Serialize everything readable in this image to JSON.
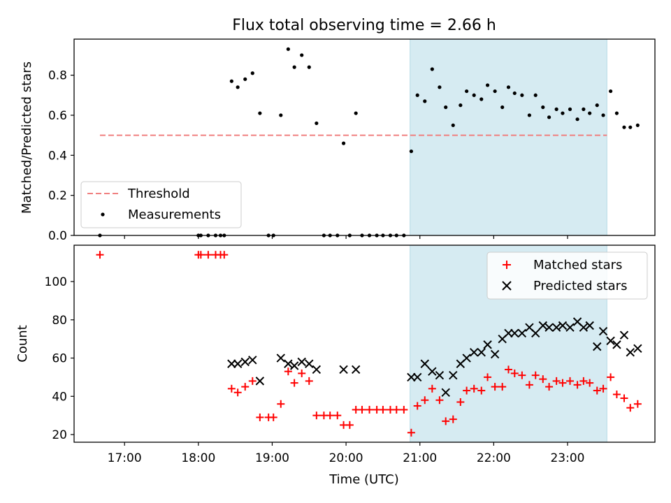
{
  "chart_data": {
    "title": "Flux total observing time = 2.66 h",
    "time_ticks": [
      "17:00",
      "18:00",
      "19:00",
      "20:00",
      "21:00",
      "22:00",
      "23:00"
    ],
    "xlabel": "Time (UTC)",
    "shaded_interval": {
      "start": "20:52",
      "end": "23:32"
    },
    "panels": [
      {
        "type": "scatter",
        "ylabel": "Matched/Predicted stars",
        "ylim": [
          0,
          0.98
        ],
        "yticks": [
          "0.0",
          "0.2",
          "0.4",
          "0.6",
          "0.8"
        ],
        "legend_position": "lower-left",
        "threshold": {
          "label": "Threshold",
          "value": 0.5,
          "color": "#f08080",
          "from": "16:40",
          "to": "23:32"
        },
        "measurements": {
          "label": "Measurements",
          "color": "#000000",
          "points": [
            [
              "16:40",
              0.0
            ],
            [
              "18:00",
              0.0
            ],
            [
              "18:02",
              0.0
            ],
            [
              "18:08",
              0.0
            ],
            [
              "18:14",
              0.0
            ],
            [
              "18:18",
              0.0
            ],
            [
              "18:21",
              0.0
            ],
            [
              "18:27",
              0.77
            ],
            [
              "18:32",
              0.74
            ],
            [
              "18:38",
              0.78
            ],
            [
              "18:44",
              0.81
            ],
            [
              "18:50",
              0.61
            ],
            [
              "18:57",
              0.0
            ],
            [
              "19:01",
              0.0
            ],
            [
              "19:07",
              0.6
            ],
            [
              "19:13",
              0.93
            ],
            [
              "19:18",
              0.84
            ],
            [
              "19:24",
              0.9
            ],
            [
              "19:30",
              0.84
            ],
            [
              "19:36",
              0.56
            ],
            [
              "19:42",
              0.0
            ],
            [
              "19:47",
              0.0
            ],
            [
              "19:53",
              0.0
            ],
            [
              "19:58",
              0.46
            ],
            [
              "20:03",
              0.0
            ],
            [
              "20:08",
              0.61
            ],
            [
              "20:13",
              0.0
            ],
            [
              "20:19",
              0.0
            ],
            [
              "20:25",
              0.0
            ],
            [
              "20:30",
              0.0
            ],
            [
              "20:36",
              0.0
            ],
            [
              "20:41",
              0.0
            ],
            [
              "20:47",
              0.0
            ],
            [
              "20:53",
              0.42
            ],
            [
              "20:58",
              0.7
            ],
            [
              "21:04",
              0.67
            ],
            [
              "21:10",
              0.83
            ],
            [
              "21:16",
              0.74
            ],
            [
              "21:21",
              0.64
            ],
            [
              "21:27",
              0.55
            ],
            [
              "21:33",
              0.65
            ],
            [
              "21:38",
              0.72
            ],
            [
              "21:44",
              0.7
            ],
            [
              "21:50",
              0.68
            ],
            [
              "21:55",
              0.75
            ],
            [
              "22:01",
              0.72
            ],
            [
              "22:07",
              0.64
            ],
            [
              "22:12",
              0.74
            ],
            [
              "22:17",
              0.71
            ],
            [
              "22:23",
              0.7
            ],
            [
              "22:29",
              0.6
            ],
            [
              "22:34",
              0.7
            ],
            [
              "22:40",
              0.64
            ],
            [
              "22:45",
              0.59
            ],
            [
              "22:51",
              0.63
            ],
            [
              "22:56",
              0.61
            ],
            [
              "23:02",
              0.63
            ],
            [
              "23:08",
              0.58
            ],
            [
              "23:13",
              0.63
            ],
            [
              "23:18",
              0.61
            ],
            [
              "23:24",
              0.65
            ],
            [
              "23:29",
              0.6
            ],
            [
              "23:35",
              0.72
            ],
            [
              "23:40",
              0.61
            ],
            [
              "23:46",
              0.54
            ],
            [
              "23:51",
              0.54
            ],
            [
              "23:57",
              0.55
            ]
          ]
        }
      },
      {
        "type": "scatter",
        "ylabel": "Count",
        "ylim": [
          16,
          119
        ],
        "yticks": [
          "20",
          "40",
          "60",
          "80",
          "100"
        ],
        "legend_position": "upper-right",
        "series": [
          {
            "name": "Matched stars",
            "marker": "+",
            "color": "#ff0000",
            "points": [
              [
                "16:40",
                114
              ],
              [
                "18:00",
                114
              ],
              [
                "18:02",
                114
              ],
              [
                "18:08",
                114
              ],
              [
                "18:14",
                114
              ],
              [
                "18:18",
                114
              ],
              [
                "18:21",
                114
              ],
              [
                "18:27",
                44
              ],
              [
                "18:32",
                42
              ],
              [
                "18:38",
                45
              ],
              [
                "18:44",
                48
              ],
              [
                "18:50",
                29
              ],
              [
                "18:57",
                29
              ],
              [
                "19:01",
                29
              ],
              [
                "19:07",
                36
              ],
              [
                "19:13",
                53
              ],
              [
                "19:18",
                47
              ],
              [
                "19:24",
                52
              ],
              [
                "19:30",
                48
              ],
              [
                "19:36",
                30
              ],
              [
                "19:42",
                30
              ],
              [
                "19:47",
                30
              ],
              [
                "19:53",
                30
              ],
              [
                "19:58",
                25
              ],
              [
                "20:03",
                25
              ],
              [
                "20:08",
                33
              ],
              [
                "20:13",
                33
              ],
              [
                "20:19",
                33
              ],
              [
                "20:25",
                33
              ],
              [
                "20:30",
                33
              ],
              [
                "20:36",
                33
              ],
              [
                "20:41",
                33
              ],
              [
                "20:47",
                33
              ],
              [
                "20:53",
                21
              ],
              [
                "20:58",
                35
              ],
              [
                "21:04",
                38
              ],
              [
                "21:10",
                44
              ],
              [
                "21:16",
                38
              ],
              [
                "21:21",
                27
              ],
              [
                "21:27",
                28
              ],
              [
                "21:33",
                37
              ],
              [
                "21:38",
                43
              ],
              [
                "21:44",
                44
              ],
              [
                "21:50",
                43
              ],
              [
                "21:55",
                50
              ],
              [
                "22:01",
                45
              ],
              [
                "22:07",
                45
              ],
              [
                "22:12",
                54
              ],
              [
                "22:17",
                52
              ],
              [
                "22:23",
                51
              ],
              [
                "22:29",
                46
              ],
              [
                "22:34",
                51
              ],
              [
                "22:40",
                49
              ],
              [
                "22:45",
                45
              ],
              [
                "22:51",
                48
              ],
              [
                "22:56",
                47
              ],
              [
                "23:02",
                48
              ],
              [
                "23:08",
                46
              ],
              [
                "23:13",
                48
              ],
              [
                "23:18",
                47
              ],
              [
                "23:24",
                43
              ],
              [
                "23:29",
                44
              ],
              [
                "23:35",
                50
              ],
              [
                "23:40",
                41
              ],
              [
                "23:46",
                39
              ],
              [
                "23:51",
                34
              ],
              [
                "23:57",
                36
              ]
            ]
          },
          {
            "name": "Predicted stars",
            "marker": "x",
            "color": "#000000",
            "points": [
              [
                "18:27",
                57
              ],
              [
                "18:32",
                57
              ],
              [
                "18:38",
                58
              ],
              [
                "18:44",
                59
              ],
              [
                "18:50",
                48
              ],
              [
                "19:07",
                60
              ],
              [
                "19:13",
                57
              ],
              [
                "19:18",
                56
              ],
              [
                "19:24",
                58
              ],
              [
                "19:30",
                57
              ],
              [
                "19:36",
                54
              ],
              [
                "19:58",
                54
              ],
              [
                "20:08",
                54
              ],
              [
                "20:53",
                50
              ],
              [
                "20:58",
                50
              ],
              [
                "21:04",
                57
              ],
              [
                "21:10",
                53
              ],
              [
                "21:16",
                51
              ],
              [
                "21:21",
                42
              ],
              [
                "21:27",
                51
              ],
              [
                "21:33",
                57
              ],
              [
                "21:38",
                60
              ],
              [
                "21:44",
                63
              ],
              [
                "21:50",
                63
              ],
              [
                "21:55",
                67
              ],
              [
                "22:01",
                62
              ],
              [
                "22:07",
                70
              ],
              [
                "22:12",
                73
              ],
              [
                "22:17",
                73
              ],
              [
                "22:23",
                73
              ],
              [
                "22:29",
                76
              ],
              [
                "22:34",
                73
              ],
              [
                "22:40",
                77
              ],
              [
                "22:45",
                76
              ],
              [
                "22:51",
                76
              ],
              [
                "22:56",
                77
              ],
              [
                "23:02",
                76
              ],
              [
                "23:08",
                79
              ],
              [
                "23:13",
                76
              ],
              [
                "23:18",
                77
              ],
              [
                "23:24",
                66
              ],
              [
                "23:29",
                74
              ],
              [
                "23:35",
                69
              ],
              [
                "23:40",
                67
              ],
              [
                "23:46",
                72
              ],
              [
                "23:51",
                63
              ],
              [
                "23:57",
                65
              ]
            ]
          }
        ]
      }
    ]
  }
}
